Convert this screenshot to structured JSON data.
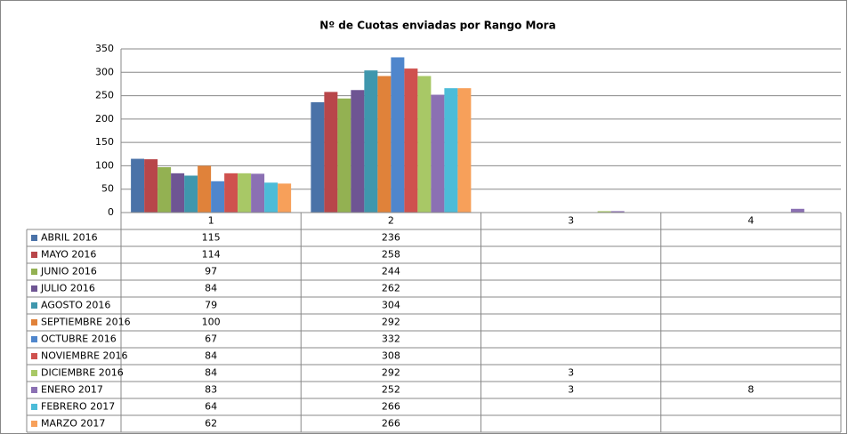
{
  "chart_data": {
    "type": "bar",
    "title": "Nº de Cuotas enviadas por Rango Mora",
    "categories": [
      "1",
      "2",
      "3",
      "4"
    ],
    "ylim": [
      0,
      350
    ],
    "yticks": [
      0,
      50,
      100,
      150,
      200,
      250,
      300,
      350
    ],
    "grid": true,
    "series": [
      {
        "name": "ABRIL 2016",
        "color": "#4a72a8",
        "values": [
          115,
          236,
          null,
          null
        ]
      },
      {
        "name": "MAYO 2016",
        "color": "#b8464a",
        "values": [
          114,
          258,
          null,
          null
        ]
      },
      {
        "name": "JUNIO 2016",
        "color": "#93b152",
        "values": [
          97,
          244,
          null,
          null
        ]
      },
      {
        "name": "JULIO 2016",
        "color": "#6e5593",
        "values": [
          84,
          262,
          null,
          null
        ]
      },
      {
        "name": "AGOSTO 2016",
        "color": "#3f97ad",
        "values": [
          79,
          304,
          null,
          null
        ]
      },
      {
        "name": "SEPTIEMBRE 2016",
        "color": "#e0823a",
        "values": [
          100,
          292,
          null,
          null
        ]
      },
      {
        "name": "OCTUBRE 2016",
        "color": "#4f86cc",
        "values": [
          67,
          332,
          null,
          null
        ]
      },
      {
        "name": "NOVIEMBRE 2016",
        "color": "#cf514e",
        "values": [
          84,
          308,
          null,
          null
        ]
      },
      {
        "name": "DICIEMBRE 2016",
        "color": "#a8c866",
        "values": [
          84,
          292,
          3,
          null
        ]
      },
      {
        "name": "ENERO 2017",
        "color": "#8b70b3",
        "values": [
          83,
          252,
          3,
          8
        ]
      },
      {
        "name": "FEBRERO 2017",
        "color": "#4cbcd8",
        "values": [
          64,
          266,
          null,
          null
        ]
      },
      {
        "name": "MARZO 2017",
        "color": "#f7a05a",
        "values": [
          62,
          266,
          null,
          null
        ]
      }
    ]
  }
}
